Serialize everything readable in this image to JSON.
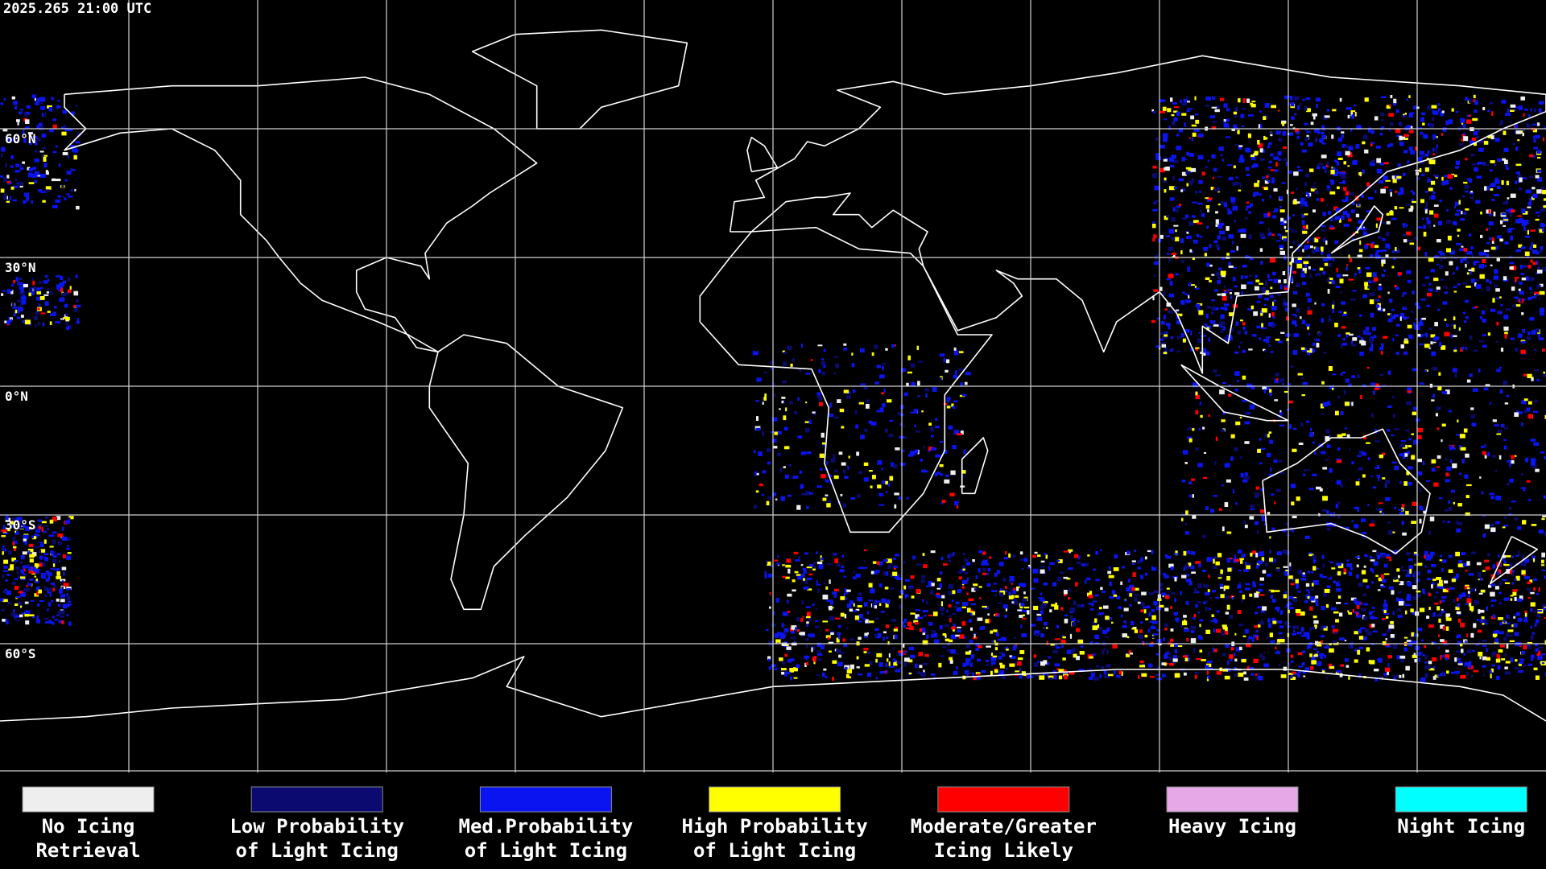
{
  "timestamp": "2025.265 21:00 UTC",
  "latitude_labels": [
    "60°N",
    "30°N",
    "0°N",
    "30°S",
    "60°S"
  ],
  "legend": [
    {
      "label": [
        "No Icing",
        "Retrieval"
      ],
      "color": "#eeeeee"
    },
    {
      "label": [
        "Low Probability",
        "of Light Icing"
      ],
      "color": "#0a0a70"
    },
    {
      "label": [
        "Med.Probability",
        "of Light Icing"
      ],
      "color": "#0a14f0"
    },
    {
      "label": [
        "High Probability",
        "of Light Icing"
      ],
      "color": "#ffff00"
    },
    {
      "label": [
        "Moderate/Greater",
        "Icing Likely"
      ],
      "color": "#ff0000"
    },
    {
      "label": [
        "Heavy Icing"
      ],
      "color": "#e6a8e6"
    },
    {
      "label": [
        "Night Icing"
      ],
      "color": "#00ffff"
    }
  ]
}
